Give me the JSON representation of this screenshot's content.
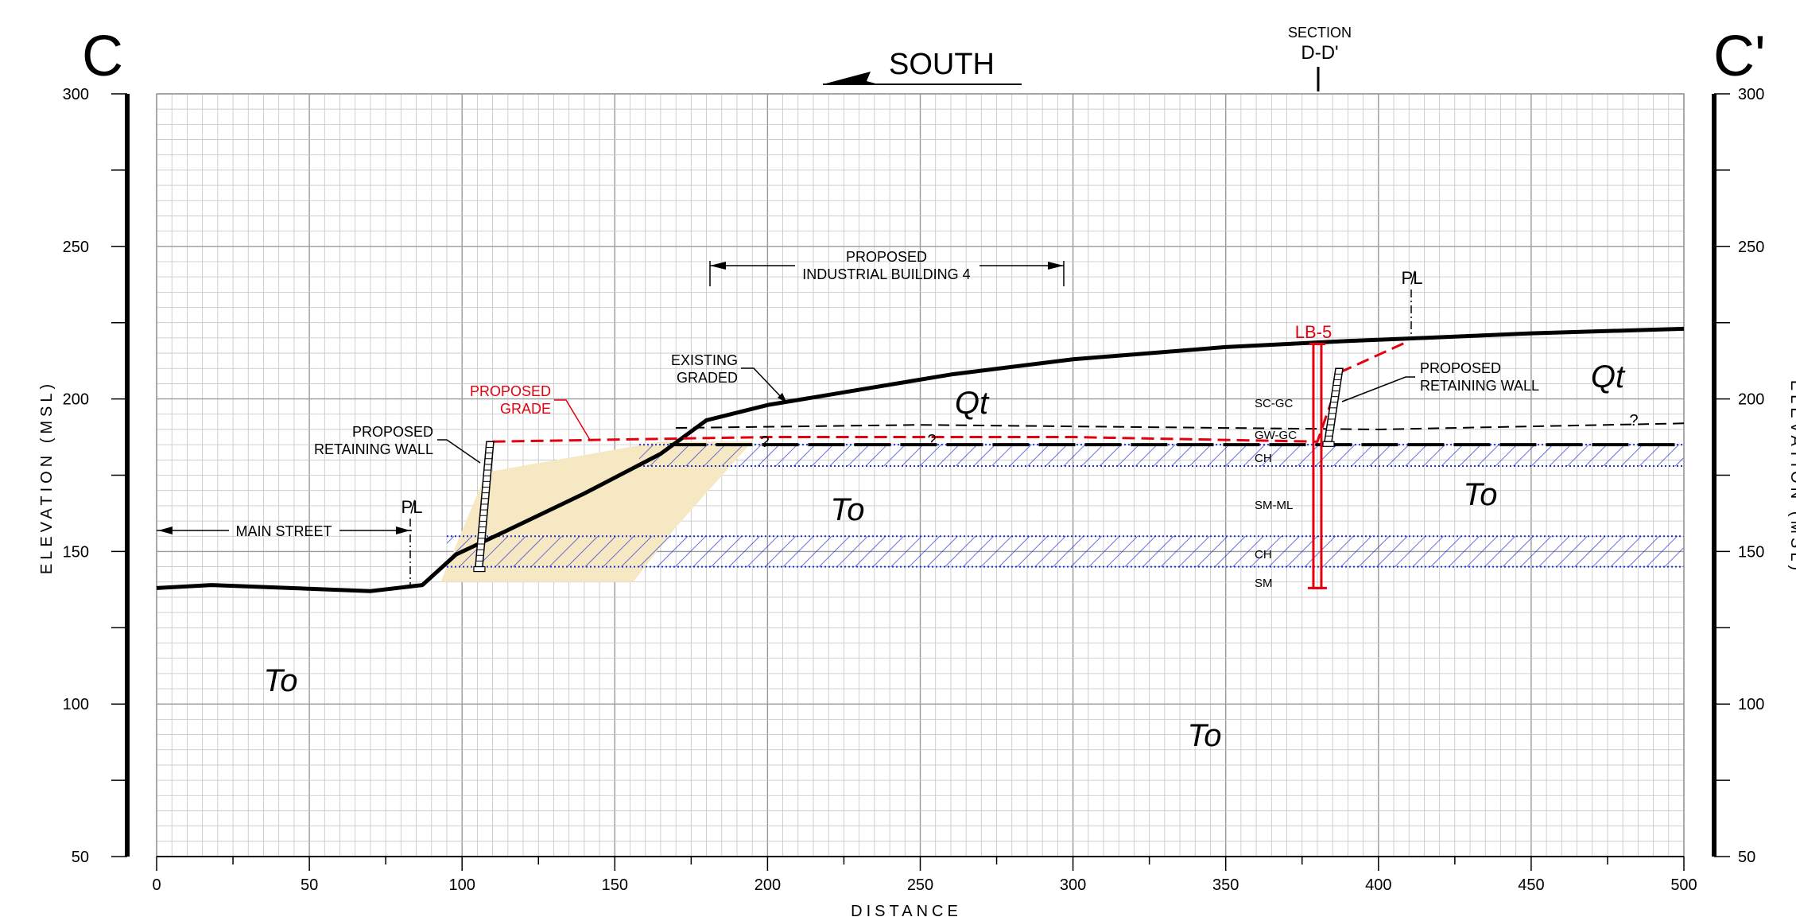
{
  "section": {
    "left_letter": "C",
    "right_letter": "C'",
    "direction": "SOUTH",
    "cross_section_label_line1": "SECTION",
    "cross_section_label_line2": "D-D'"
  },
  "axes": {
    "ylabel": "ELEVATION (MSL)",
    "xlabel": "DISTANCE",
    "x_ticks": [
      "0",
      "50",
      "100",
      "150",
      "200",
      "250",
      "300",
      "350",
      "400",
      "450",
      "500"
    ],
    "y_ticks": [
      "300",
      "250",
      "200",
      "150",
      "100",
      "50"
    ],
    "xlim": [
      0,
      500
    ],
    "ylim": [
      50,
      300
    ]
  },
  "annotations": {
    "building_line1": "PROPOSED",
    "building_line2": "INDUSTRIAL BUILDING 4",
    "existing_line1": "EXISTING",
    "existing_line2": "GRADED",
    "proposed_grade_line1": "PROPOSED",
    "proposed_grade_line2": "GRADE",
    "left_wall_line1": "PROPOSED",
    "left_wall_line2": "RETAINING WALL",
    "right_wall_line1": "PROPOSED",
    "right_wall_line2": "RETAINING WALL",
    "main_street": "MAIN STREET",
    "property_line_symbol": "P̸L",
    "boring": "LB-5",
    "question": "?"
  },
  "units": {
    "qt": "Qt",
    "to": "To"
  },
  "soil_layers": [
    "SC-GC",
    "GW-GC",
    "CH",
    "SM-ML",
    "CH",
    "SM"
  ],
  "colors": {
    "grid": "#c4c4c4",
    "grid_major": "#9a9a9a",
    "proposed": "#e3000f",
    "clay_hatch": "#1f2ed6",
    "fill_zone": "#f7e8c4"
  },
  "chart_data": {
    "type": "line",
    "title": "",
    "xlabel": "DISTANCE",
    "ylabel": "ELEVATION (MSL)",
    "xlim": [
      0,
      500
    ],
    "ylim": [
      50,
      300
    ],
    "grid": true,
    "series": [
      {
        "name": "EXISTING GRADED",
        "x": [
          0,
          18,
          70,
          87,
          98,
          115,
          140,
          165,
          180,
          200,
          230,
          260,
          300,
          350,
          390,
          415,
          450,
          500
        ],
        "y": [
          138,
          139,
          137,
          139,
          149,
          157,
          169,
          182,
          193,
          198,
          203,
          208,
          213,
          217,
          219,
          220,
          221.5,
          223
        ]
      },
      {
        "name": "PROPOSED GRADE",
        "x": [
          110,
          200,
          300,
          380,
          388,
          410
        ],
        "y": [
          186,
          187.5,
          187.5,
          186,
          209,
          219
        ]
      },
      {
        "x": [
          170,
          250,
          300,
          400,
          500
        ],
        "y": [
          190.5,
          191.5,
          191,
          190,
          192
        ]
      }
    ],
    "boring": {
      "name": "LB-5",
      "x": 380,
      "top": 218,
      "bottom": 138
    },
    "property_lines_x": [
      83,
      410
    ],
    "retaining_walls": [
      {
        "x": 108,
        "top": 186,
        "bottom": 145
      },
      {
        "x": 386,
        "top": 210,
        "bottom": 186
      }
    ],
    "clay_layers": [
      {
        "label": "CH",
        "x_from": 158,
        "x_to": 500,
        "top": 185,
        "bottom": 178
      },
      {
        "label": "CH",
        "x_from": 95,
        "x_to": 500,
        "top": 155,
        "bottom": 145
      }
    ],
    "fill_zone": {
      "x_from": 93,
      "x_to": 195,
      "top": 186,
      "bottom": 140
    },
    "building_extent_x": [
      181,
      297
    ],
    "main_street_extent_x": [
      0,
      83
    ]
  }
}
